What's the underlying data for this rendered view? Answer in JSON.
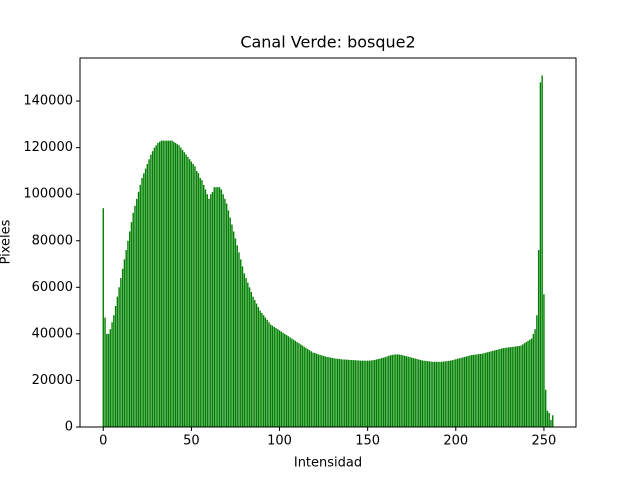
{
  "chart_data": {
    "type": "bar",
    "title": "Canal Verde: bosque2",
    "xlabel": "Intensidad",
    "ylabel": "Pixeles",
    "color": "#008000",
    "x": [
      0,
      1,
      2,
      3,
      4,
      5,
      6,
      7,
      8,
      9,
      10,
      11,
      12,
      13,
      14,
      15,
      16,
      17,
      18,
      19,
      20,
      21,
      22,
      23,
      24,
      25,
      26,
      27,
      28,
      29,
      30,
      31,
      32,
      33,
      34,
      35,
      36,
      37,
      38,
      39,
      40,
      41,
      42,
      43,
      44,
      45,
      46,
      47,
      48,
      49,
      50,
      51,
      52,
      53,
      54,
      55,
      56,
      57,
      58,
      59,
      60,
      61,
      62,
      63,
      64,
      65,
      66,
      67,
      68,
      69,
      70,
      71,
      72,
      73,
      74,
      75,
      76,
      77,
      78,
      79,
      80,
      81,
      82,
      83,
      84,
      85,
      86,
      87,
      88,
      89,
      90,
      91,
      92,
      93,
      94,
      95,
      96,
      97,
      98,
      99,
      100,
      101,
      102,
      103,
      104,
      105,
      106,
      107,
      108,
      109,
      110,
      111,
      112,
      113,
      114,
      115,
      116,
      117,
      118,
      119,
      120,
      121,
      122,
      123,
      124,
      125,
      126,
      127,
      128,
      129,
      130,
      131,
      132,
      133,
      134,
      135,
      136,
      137,
      138,
      139,
      140,
      141,
      142,
      143,
      144,
      145,
      146,
      147,
      148,
      149,
      150,
      151,
      152,
      153,
      154,
      155,
      156,
      157,
      158,
      159,
      160,
      161,
      162,
      163,
      164,
      165,
      166,
      167,
      168,
      169,
      170,
      171,
      172,
      173,
      174,
      175,
      176,
      177,
      178,
      179,
      180,
      181,
      182,
      183,
      184,
      185,
      186,
      187,
      188,
      189,
      190,
      191,
      192,
      193,
      194,
      195,
      196,
      197,
      198,
      199,
      200,
      201,
      202,
      203,
      204,
      205,
      206,
      207,
      208,
      209,
      210,
      211,
      212,
      213,
      214,
      215,
      216,
      217,
      218,
      219,
      220,
      221,
      222,
      223,
      224,
      225,
      226,
      227,
      228,
      229,
      230,
      231,
      232,
      233,
      234,
      235,
      236,
      237,
      238,
      239,
      240,
      241,
      242,
      243,
      244,
      245,
      246,
      247,
      248,
      249,
      250,
      251,
      252,
      253,
      254,
      255
    ],
    "values": [
      94000,
      47000,
      40000,
      40000,
      42000,
      45000,
      48000,
      52000,
      56000,
      60000,
      64000,
      68000,
      72000,
      76000,
      80000,
      84000,
      88000,
      92000,
      95000,
      98000,
      101000,
      104000,
      107000,
      109000,
      111000,
      113000,
      115000,
      117000,
      118500,
      120000,
      121000,
      122000,
      122500,
      123000,
      123000,
      123000,
      123000,
      123000,
      123000,
      123000,
      122500,
      122000,
      121500,
      121000,
      120000,
      119000,
      118000,
      117000,
      116000,
      115000,
      114000,
      113000,
      112000,
      110000,
      109000,
      107000,
      106000,
      104000,
      102000,
      100000,
      98000,
      100000,
      101000,
      103000,
      103000,
      103000,
      103000,
      102000,
      100000,
      98000,
      96000,
      93000,
      90000,
      87000,
      84000,
      81000,
      78000,
      75000,
      72000,
      69000,
      66000,
      64000,
      62000,
      60000,
      58000,
      56000,
      54500,
      53000,
      51500,
      50000,
      49000,
      48000,
      47000,
      46000,
      45000,
      44000,
      43500,
      43000,
      42500,
      42000,
      41500,
      41000,
      40500,
      40000,
      39500,
      39000,
      38500,
      38000,
      37500,
      37000,
      36500,
      36000,
      35500,
      35000,
      34500,
      34000,
      33500,
      33000,
      32500,
      32000,
      31800,
      31500,
      31200,
      31000,
      30800,
      30500,
      30300,
      30100,
      30000,
      29800,
      29600,
      29500,
      29400,
      29300,
      29200,
      29100,
      29000,
      29000,
      28900,
      28900,
      28800,
      28800,
      28700,
      28700,
      28600,
      28600,
      28500,
      28500,
      28500,
      28500,
      28500,
      28500,
      28600,
      28700,
      28800,
      29000,
      29200,
      29400,
      29600,
      29800,
      30000,
      30300,
      30600,
      30800,
      31000,
      31100,
      31200,
      31200,
      31100,
      31000,
      30800,
      30600,
      30400,
      30200,
      30000,
      29800,
      29600,
      29400,
      29200,
      29000,
      28800,
      28600,
      28500,
      28400,
      28300,
      28200,
      28100,
      28000,
      28000,
      28000,
      28000,
      28000,
      28000,
      28100,
      28200,
      28300,
      28400,
      28500,
      28700,
      28900,
      29100,
      29300,
      29500,
      29700,
      29900,
      30100,
      30300,
      30500,
      30700,
      30900,
      31000,
      31100,
      31200,
      31300,
      31400,
      31500,
      31700,
      31900,
      32100,
      32300,
      32500,
      32700,
      32900,
      33100,
      33300,
      33500,
      33700,
      33900,
      34000,
      34100,
      34200,
      34300,
      34400,
      34500,
      34600,
      34700,
      34800,
      35000,
      35500,
      36000,
      36500,
      37000,
      37500,
      38000,
      40000,
      42000,
      48000,
      76000,
      148000,
      151000,
      57000,
      16000,
      7000,
      6000,
      3000,
      5000
    ],
    "xlim": [
      -13.2,
      268.2
    ],
    "xticks": [
      0,
      50,
      100,
      150,
      200,
      250
    ],
    "ylim": [
      0,
      158500
    ],
    "yticks": [
      0,
      20000,
      40000,
      60000,
      80000,
      100000,
      120000,
      140000
    ]
  }
}
